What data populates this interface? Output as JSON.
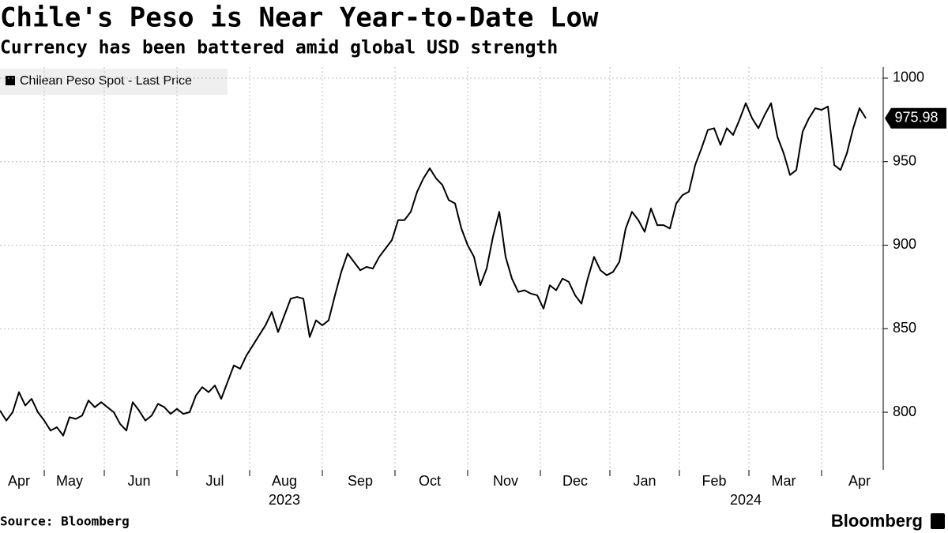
{
  "chart_data": {
    "type": "line",
    "title": "Chile's Peso is Near Year-to-Date Low",
    "subtitle": "Currency has been battered amid global USD strength",
    "categories": [
      null,
      null,
      null,
      "Apr",
      null,
      null,
      null,
      null,
      null,
      null,
      null,
      "May",
      null,
      null,
      null,
      null,
      null,
      null,
      null,
      null,
      null,
      null,
      "Jun",
      null,
      null,
      null,
      null,
      null,
      null,
      null,
      null,
      null,
      null,
      null,
      "Jul",
      null,
      null,
      null,
      null,
      null,
      null,
      null,
      null,
      null,
      null,
      "Aug",
      null,
      null,
      null,
      null,
      null,
      null,
      null,
      null,
      null,
      null,
      null,
      "Sep",
      null,
      null,
      null,
      null,
      null,
      null,
      null,
      null,
      null,
      null,
      "Oct",
      null,
      null,
      null,
      null,
      null,
      null,
      null,
      null,
      null,
      null,
      null,
      "Nov",
      null,
      null,
      null,
      null,
      null,
      null,
      null,
      null,
      null,
      null,
      "Dec",
      null,
      null,
      null,
      null,
      null,
      null,
      null,
      null,
      null,
      null,
      "Jan",
      null,
      null,
      null,
      null,
      null,
      null,
      null,
      null,
      null,
      null,
      "Feb",
      null,
      null,
      null,
      null,
      null,
      null,
      null,
      null,
      null,
      null,
      "Mar",
      null,
      null,
      null,
      null,
      null,
      null,
      null,
      null,
      null,
      null,
      null,
      "Apr",
      null
    ],
    "year_labels": [
      null,
      null,
      null,
      null,
      null,
      null,
      null,
      null,
      null,
      null,
      null,
      null,
      null,
      null,
      null,
      null,
      null,
      null,
      null,
      null,
      null,
      null,
      null,
      null,
      null,
      null,
      null,
      null,
      null,
      null,
      null,
      null,
      null,
      null,
      null,
      null,
      null,
      null,
      null,
      null,
      null,
      null,
      null,
      null,
      null,
      "2023",
      null,
      null,
      null,
      null,
      null,
      null,
      null,
      null,
      null,
      null,
      null,
      null,
      null,
      null,
      null,
      null,
      null,
      null,
      null,
      null,
      null,
      null,
      null,
      null,
      null,
      null,
      null,
      null,
      null,
      null,
      null,
      null,
      null,
      null,
      null,
      null,
      null,
      null,
      null,
      null,
      null,
      null,
      null,
      null,
      null,
      null,
      null,
      null,
      null,
      null,
      null,
      null,
      null,
      null,
      null,
      null,
      null,
      null,
      null,
      null,
      null,
      null,
      null,
      null,
      null,
      null,
      null,
      null,
      null,
      null,
      null,
      null,
      "2024",
      null,
      null,
      null,
      null,
      null,
      null,
      null,
      null,
      null,
      null,
      null,
      null,
      null,
      null,
      null,
      null,
      null,
      null,
      null
    ],
    "series": [
      {
        "name": "Chilean Peso Spot - Last Price",
        "color": "#000000",
        "values": [
          801,
          795,
          800,
          812,
          804,
          808,
          800,
          795,
          789,
          791,
          786,
          797,
          796,
          798,
          807,
          803,
          806,
          803,
          800,
          793,
          789,
          806,
          801,
          795,
          798,
          805,
          803,
          799,
          802,
          799,
          800,
          810,
          815,
          812,
          816,
          808,
          818,
          828,
          826,
          834,
          840,
          846,
          852,
          860,
          848,
          858,
          868,
          869,
          868,
          845,
          855,
          852,
          855,
          870,
          884,
          895,
          890,
          885,
          887,
          886,
          893,
          898,
          903,
          915,
          915,
          920,
          932,
          940,
          946,
          940,
          936,
          927,
          925,
          910,
          900,
          893,
          876,
          886,
          905,
          920,
          893,
          880,
          872,
          873,
          871,
          870,
          862,
          876,
          873,
          880,
          878,
          870,
          865,
          880,
          893,
          885,
          882,
          884,
          890,
          910,
          920,
          915,
          908,
          922,
          912,
          912,
          910,
          925,
          930,
          932,
          948,
          958,
          969,
          970,
          960,
          970,
          966,
          975,
          985,
          976,
          970,
          978,
          985,
          965,
          955,
          942,
          945,
          968,
          976,
          982,
          981,
          983,
          948,
          945,
          955,
          970,
          982,
          975.98
        ]
      }
    ],
    "ylim": [
      765.5,
      1006.6
    ],
    "yticks": [
      800,
      850,
      900,
      950,
      1000
    ],
    "grid": true
  },
  "source": "Source: Bloomberg",
  "brand": "Bloomberg"
}
